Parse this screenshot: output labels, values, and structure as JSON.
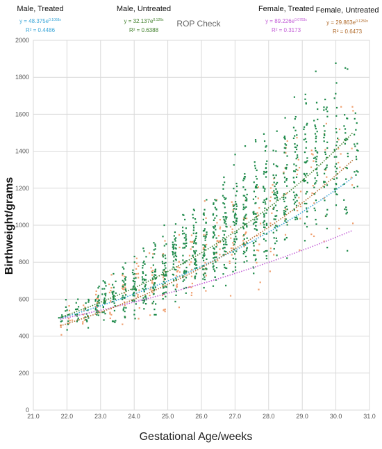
{
  "chart_data": {
    "type": "scatter",
    "title": "ROP Check",
    "xlabel": "Gestational Age/weeks",
    "ylabel": "Birthweight/grams",
    "xlim": [
      21.0,
      31.0
    ],
    "ylim": [
      0,
      2000
    ],
    "x_ticks": [
      "21.0",
      "22.0",
      "23.0",
      "24.0",
      "25.0",
      "26.0",
      "27.0",
      "28.0",
      "29.0",
      "30.0",
      "31.0"
    ],
    "y_ticks": [
      "0",
      "200",
      "400",
      "600",
      "800",
      "1000",
      "1200",
      "1400",
      "1600",
      "1800",
      "2000"
    ],
    "grid": true,
    "colors": {
      "male_treated": "#3aa6d8",
      "male_untreated": "#3f7f2a",
      "female_treated": "#c25bd6",
      "female_untreated": "#b06a2a",
      "points_green": "#1e8a4a",
      "points_orange": "#f0a070"
    },
    "series": [
      {
        "name": "Male, Treated",
        "equation_base": "y = 48.375e",
        "equation_exp": "0.1068x",
        "r2": "R² = 0.4486",
        "a": 48.375,
        "b": 0.1068,
        "x_range": [
          21.8,
          30.5
        ],
        "trend_color": "#3aa6d8"
      },
      {
        "name": "Male, Untreated",
        "equation_base": "y = 32.137e",
        "equation_exp": "0.126x",
        "r2": "R² = 0.6388",
        "a": 32.137,
        "b": 0.126,
        "x_range": [
          21.8,
          30.5
        ],
        "trend_color": "#3f7f2a"
      },
      {
        "name": "Female, Treated",
        "equation_base": "y = 89.226e",
        "equation_exp": "0.0783x",
        "r2": "R² = 0.3173",
        "a": 89.226,
        "b": 0.0783,
        "x_range": [
          21.8,
          30.5
        ],
        "trend_color": "#c25bd6"
      },
      {
        "name": "Female, Untreated",
        "equation_base": "y = 29.863e",
        "equation_exp": "0.1250x",
        "r2": "R² = 0.6473",
        "a": 29.863,
        "b": 0.125,
        "x_range": [
          21.8,
          30.5
        ],
        "trend_color": "#b06a2a"
      }
    ],
    "scatter_groups": [
      {
        "color_key": "points_green",
        "per_week": [
          [
            21.8,
            460,
            540,
            6
          ],
          [
            22.0,
            420,
            620,
            10
          ],
          [
            22.3,
            430,
            640,
            12
          ],
          [
            22.6,
            420,
            680,
            16
          ],
          [
            22.9,
            440,
            720,
            20
          ],
          [
            23.1,
            420,
            760,
            24
          ],
          [
            23.4,
            430,
            800,
            28
          ],
          [
            23.7,
            440,
            840,
            30
          ],
          [
            24.0,
            430,
            880,
            34
          ],
          [
            24.3,
            430,
            940,
            36
          ],
          [
            24.6,
            440,
            980,
            38
          ],
          [
            24.9,
            460,
            1040,
            40
          ],
          [
            25.2,
            470,
            1080,
            42
          ],
          [
            25.5,
            480,
            1140,
            44
          ],
          [
            25.8,
            500,
            1200,
            46
          ],
          [
            26.1,
            510,
            1260,
            46
          ],
          [
            26.4,
            520,
            1320,
            48
          ],
          [
            26.7,
            540,
            1380,
            48
          ],
          [
            27.0,
            560,
            1440,
            50
          ],
          [
            27.3,
            570,
            1500,
            50
          ],
          [
            27.6,
            600,
            1580,
            50
          ],
          [
            27.9,
            620,
            1640,
            48
          ],
          [
            28.2,
            640,
            1720,
            46
          ],
          [
            28.5,
            660,
            1790,
            44
          ],
          [
            28.8,
            680,
            1860,
            42
          ],
          [
            29.1,
            700,
            1930,
            40
          ],
          [
            29.4,
            720,
            2000,
            38
          ],
          [
            29.7,
            740,
            2000,
            34
          ],
          [
            30.0,
            760,
            2000,
            30
          ],
          [
            30.3,
            780,
            2000,
            26
          ],
          [
            30.6,
            800,
            2000,
            18
          ]
        ]
      },
      {
        "color_key": "points_orange",
        "per_week": [
          [
            21.8,
            350,
            520,
            4
          ],
          [
            22.1,
            380,
            600,
            6
          ],
          [
            22.5,
            400,
            650,
            8
          ],
          [
            22.9,
            400,
            720,
            10
          ],
          [
            23.3,
            400,
            780,
            12
          ],
          [
            23.7,
            410,
            840,
            14
          ],
          [
            24.1,
            420,
            900,
            14
          ],
          [
            24.5,
            430,
            960,
            16
          ],
          [
            24.9,
            440,
            1000,
            16
          ],
          [
            25.3,
            460,
            1060,
            16
          ],
          [
            25.7,
            480,
            1120,
            16
          ],
          [
            26.1,
            500,
            1200,
            16
          ],
          [
            26.5,
            520,
            1260,
            16
          ],
          [
            26.9,
            540,
            1330,
            16
          ],
          [
            27.3,
            560,
            1400,
            14
          ],
          [
            27.7,
            580,
            1480,
            14
          ],
          [
            28.1,
            600,
            1560,
            14
          ],
          [
            28.5,
            620,
            1640,
            12
          ],
          [
            28.9,
            640,
            1720,
            12
          ],
          [
            29.3,
            660,
            1800,
            10
          ],
          [
            29.7,
            680,
            1880,
            8
          ],
          [
            30.1,
            700,
            1940,
            8
          ],
          [
            30.5,
            720,
            1980,
            6
          ]
        ]
      }
    ]
  }
}
